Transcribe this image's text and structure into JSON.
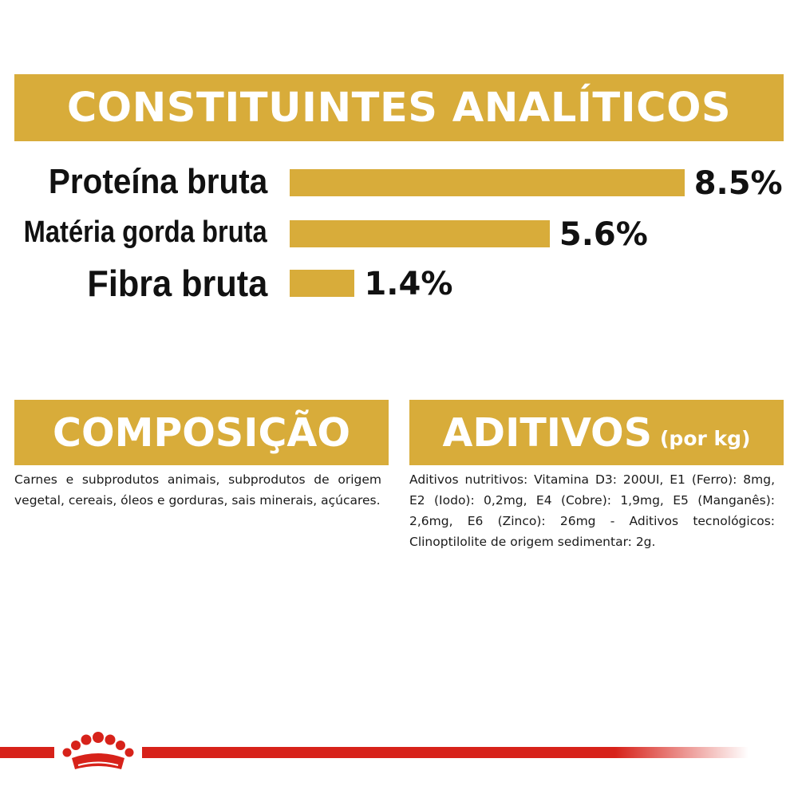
{
  "analytic": {
    "title": "CONSTITUINTES ANALÍTICOS",
    "rows": [
      {
        "label": "Proteína bruta",
        "value": 8.5,
        "value_text": "8.5%"
      },
      {
        "label": "Matéria gorda bruta",
        "value": 5.6,
        "value_text": "5.6%"
      },
      {
        "label": "Fibra bruta",
        "value": 1.4,
        "value_text": "1.4%"
      }
    ],
    "bar_color": "#d8ac3a"
  },
  "composition": {
    "title": "COMPOSIÇÃO",
    "text": "Carnes e subprodutos animais, subprodutos de origem vegetal, cereais, óleos e gorduras, sais minerais, açúcares."
  },
  "additives": {
    "title": "ADITIVOS",
    "subtitle": "(por kg)",
    "text": "Aditivos nutritivos: Vitamina D3: 200UI, E1 (Ferro): 8mg, E2 (Iodo): 0,2mg, E4 (Cobre): 1,9mg, E5 (Manganês): 2,6mg, E6 (Zinco): 26mg - Aditivos tecnológicos: Clinoptilolite de origem sedimentar: 2g."
  },
  "colors": {
    "accent": "#d8ac3a",
    "brand_red": "#d7221a"
  },
  "logo": {
    "icon": "royal-canin-crown-icon"
  }
}
